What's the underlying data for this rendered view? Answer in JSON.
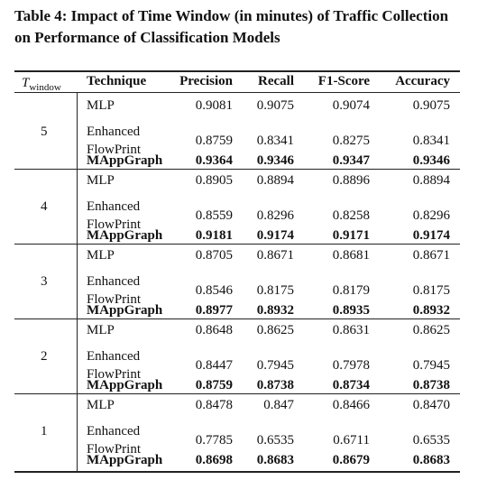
{
  "caption": "Table 4: Impact of Time Window (in minutes) of Traffic Collection on Performance of Classification Models",
  "table": {
    "header": {
      "window_symbol": "T",
      "window_subscript": "window",
      "columns": [
        "Technique",
        "Precision",
        "Recall",
        "F1-Score",
        "Accuracy"
      ]
    },
    "groups": [
      {
        "window": "5",
        "rows": [
          [
            "MLP",
            "0.9081",
            "0.9075",
            "0.9074",
            "0.9075"
          ],
          [
            "Enhanced FlowPrint",
            "0.8759",
            "0.8341",
            "0.8275",
            "0.8341"
          ],
          [
            "MAppGraph",
            "0.9364",
            "0.9346",
            "0.9347",
            "0.9346"
          ]
        ]
      },
      {
        "window": "4",
        "rows": [
          [
            "MLP",
            "0.8905",
            "0.8894",
            "0.8896",
            "0.8894"
          ],
          [
            "Enhanced FlowPrint",
            "0.8559",
            "0.8296",
            "0.8258",
            "0.8296"
          ],
          [
            "MAppGraph",
            "0.9181",
            "0.9174",
            "0.9171",
            "0.9174"
          ]
        ]
      },
      {
        "window": "3",
        "rows": [
          [
            "MLP",
            "0.8705",
            "0.8671",
            "0.8681",
            "0.8671"
          ],
          [
            "Enhanced FlowPrint",
            "0.8546",
            "0.8175",
            "0.8179",
            "0.8175"
          ],
          [
            "MAppGraph",
            "0.8977",
            "0.8932",
            "0.8935",
            "0.8932"
          ]
        ]
      },
      {
        "window": "2",
        "rows": [
          [
            "MLP",
            "0.8648",
            "0.8625",
            "0.8631",
            "0.8625"
          ],
          [
            "Enhanced FlowPrint",
            "0.8447",
            "0.7945",
            "0.7978",
            "0.7945"
          ],
          [
            "MAppGraph",
            "0.8759",
            "0.8738",
            "0.8734",
            "0.8738"
          ]
        ]
      },
      {
        "window": "1",
        "rows": [
          [
            "MLP",
            "0.8478",
            "0.847",
            "0.8466",
            "0.8470"
          ],
          [
            "Enhanced FlowPrint",
            "0.7785",
            "0.6535",
            "0.6711",
            "0.6535"
          ],
          [
            "MAppGraph",
            "0.8698",
            "0.8683",
            "0.8679",
            "0.8683"
          ]
        ]
      }
    ]
  }
}
